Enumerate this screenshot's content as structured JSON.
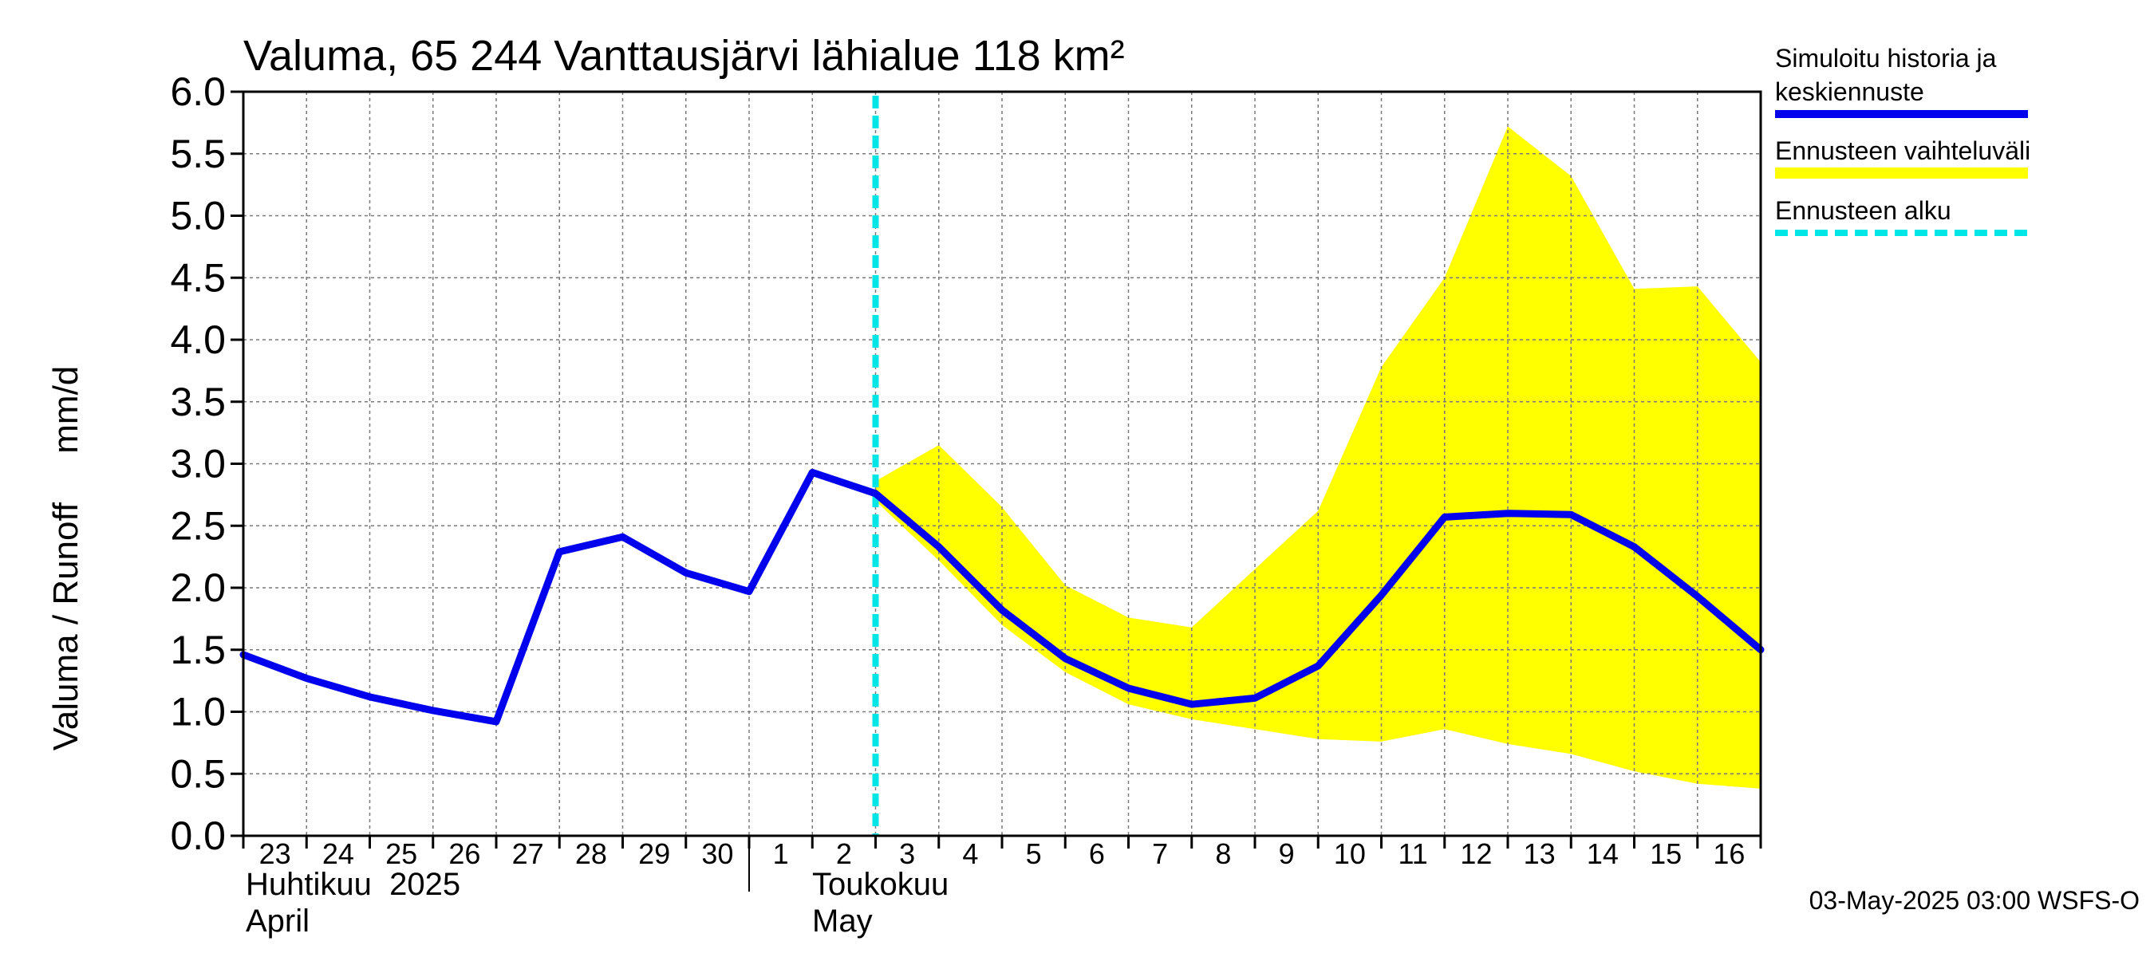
{
  "chart_data": {
    "type": "area",
    "title": "Valuma, 65 244 Vanttausjärvi lähialue 118 km²",
    "ylabel": "Valuma / Runoff     mm/d",
    "ylim": [
      0,
      6
    ],
    "yticks": [
      "0.0",
      "0.5",
      "1.0",
      "1.5",
      "2.0",
      "2.5",
      "3.0",
      "3.5",
      "4.0",
      "4.5",
      "5.0",
      "5.5",
      "6.0"
    ],
    "x_day_labels": [
      "23",
      "24",
      "25",
      "26",
      "27",
      "28",
      "29",
      "30",
      "1",
      "2",
      "3",
      "4",
      "5",
      "6",
      "7",
      "8",
      "9",
      "10",
      "11",
      "12",
      "13",
      "14",
      "15",
      "16"
    ],
    "month_labels": [
      {
        "fi": "Huhtikuu  2025",
        "en": "April"
      },
      {
        "fi": "Toukokuu",
        "en": "May"
      }
    ],
    "grid": true,
    "series": [
      {
        "name": "Simuloitu historia ja keskiennuste",
        "color": "#0000ee",
        "day_index": [
          0,
          1,
          2,
          3,
          4,
          5,
          6,
          7,
          8,
          9,
          10,
          11,
          12,
          13,
          14,
          15,
          16,
          17,
          18,
          19,
          20,
          21,
          22,
          23,
          24
        ],
        "values": [
          1.46,
          1.27,
          1.12,
          1.01,
          0.92,
          2.29,
          2.41,
          2.12,
          1.97,
          2.93,
          2.76,
          2.33,
          1.82,
          1.43,
          1.19,
          1.06,
          1.11,
          1.37,
          1.94,
          2.57,
          2.6,
          2.59,
          2.33,
          1.93,
          1.5
        ]
      },
      {
        "name": "Ennusteen vaihteluväli",
        "color": "#ffff00",
        "day_index": [
          10,
          11,
          12,
          13,
          14,
          15,
          16,
          17,
          18,
          19,
          20,
          21,
          22,
          23,
          24
        ],
        "upper": [
          2.86,
          3.15,
          2.65,
          2.02,
          1.76,
          1.68,
          2.15,
          2.62,
          3.78,
          4.5,
          5.72,
          5.32,
          4.41,
          4.43,
          3.82
        ],
        "lower": [
          2.7,
          2.22,
          1.7,
          1.32,
          1.06,
          0.94,
          0.86,
          0.78,
          0.76,
          0.86,
          0.74,
          0.66,
          0.52,
          0.42,
          0.38
        ]
      }
    ],
    "forecast_start": {
      "name": "Ennusteen alku",
      "day_index": 10,
      "color": "#00e5e5"
    },
    "legend": {
      "position": "right",
      "entries": [
        {
          "line1": "Simuloitu historia ja",
          "line2": "keskiennuste",
          "color": "#0000ee",
          "style": "solid"
        },
        {
          "line1": "Ennusteen vaihteluväli",
          "line2": "",
          "color": "#ffff00",
          "style": "solid"
        },
        {
          "line1": "Ennusteen alku",
          "line2": "",
          "color": "#00e5e5",
          "style": "dashed"
        }
      ]
    },
    "footer": "03-May-2025 03:00 WSFS-O"
  }
}
